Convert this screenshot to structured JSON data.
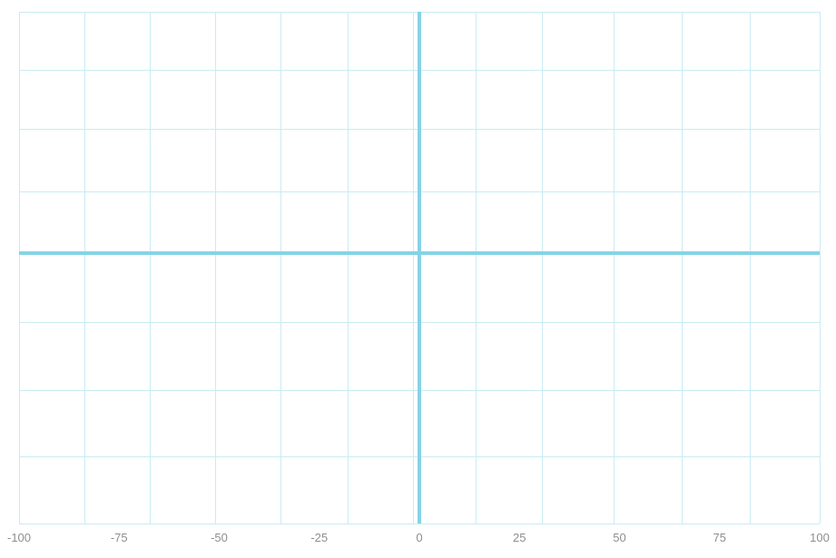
{
  "chart_data": {
    "type": "line",
    "title": "",
    "xlabel": "",
    "ylabel": "",
    "xlim": [
      -100,
      100
    ],
    "x_ticks": [
      -100,
      -75,
      -50,
      -25,
      0,
      25,
      50,
      75,
      100
    ],
    "x_tick_labels": [
      "-100",
      "-75",
      "-50",
      "-25",
      "0",
      "25",
      "50",
      "75",
      "100"
    ],
    "y_ticks_visible": false,
    "grid": true,
    "series": []
  },
  "colors": {
    "grid": "#c9ecf3",
    "axis": "#86d3e6",
    "tick_text": "#8e8e8e"
  }
}
